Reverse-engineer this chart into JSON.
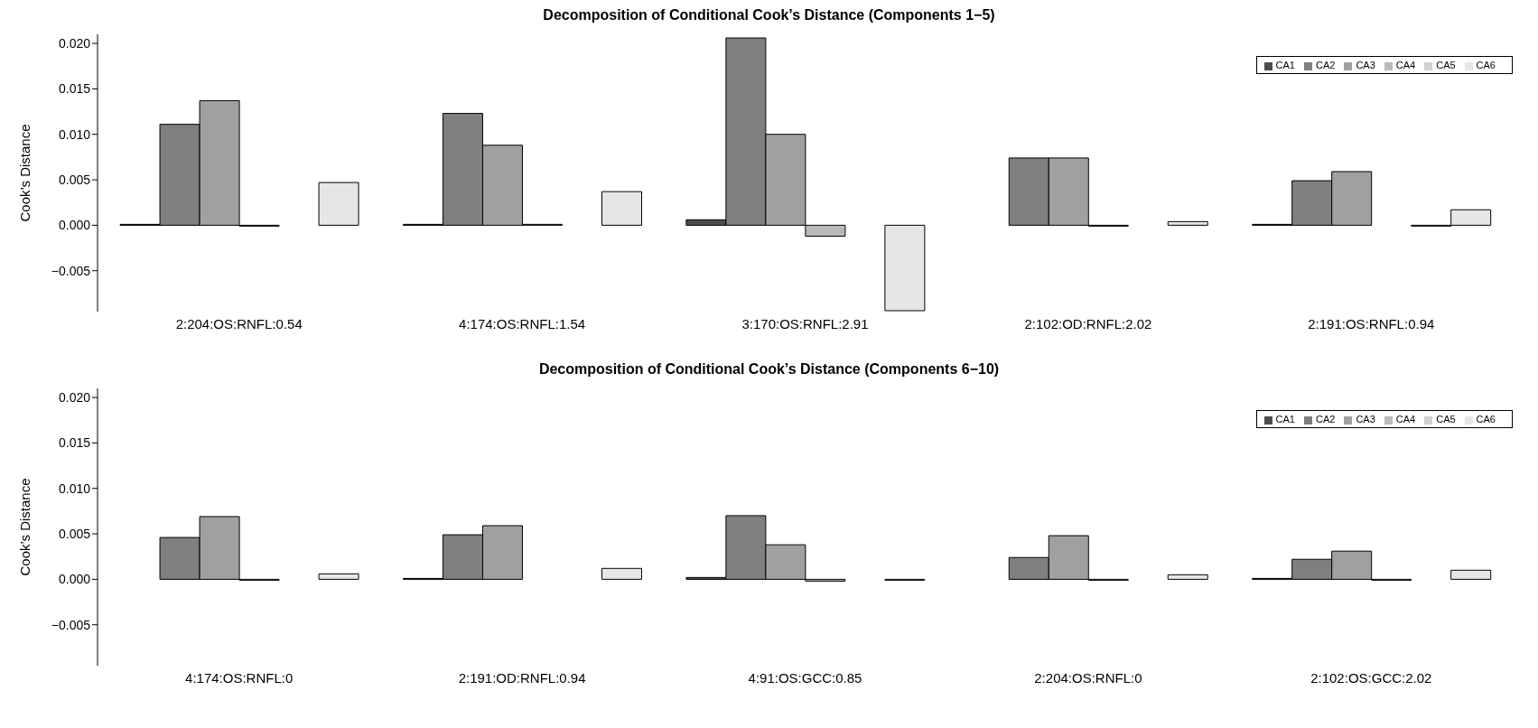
{
  "chart_data": [
    {
      "type": "bar",
      "title": "Decomposition of Conditional Cook’s Distance (Components 1−5)",
      "ylabel": "Cook’s Distance",
      "categories": [
        "2:204:OS:RNFL:0.54",
        "4:174:OS:RNFL:1.54",
        "3:170:OS:RNFL:2.91",
        "2:102:OD:RNFL:2.02",
        "2:191:OS:RNFL:0.94"
      ],
      "series": [
        {
          "name": "CA1",
          "color": "#4d4d4d",
          "values": [
            0.0001,
            0.0001,
            0.0006,
            0.0,
            0.0001
          ]
        },
        {
          "name": "CA2",
          "color": "#7f7f7f",
          "values": [
            0.0111,
            0.0123,
            0.0206,
            0.0074,
            0.0049
          ]
        },
        {
          "name": "CA3",
          "color": "#a0a0a0",
          "values": [
            0.0137,
            0.0088,
            0.01,
            0.0074,
            0.0059
          ]
        },
        {
          "name": "CA4",
          "color": "#bababa",
          "values": [
            -0.0001,
            0.0001,
            -0.0012,
            -0.0001,
            0.0
          ]
        },
        {
          "name": "CA5",
          "color": "#d1d1d1",
          "values": [
            0.0,
            0.0,
            0.0,
            0.0,
            -0.0001
          ]
        },
        {
          "name": "CA6",
          "color": "#e6e6e6",
          "values": [
            0.0047,
            0.0037,
            -0.0094,
            0.0004,
            0.0017
          ]
        }
      ],
      "ylim": [
        -0.0095,
        0.021
      ],
      "yticks": [
        {
          "value": -0.005,
          "label": "−0.005"
        },
        {
          "value": 0,
          "label": "0.000"
        },
        {
          "value": 0.005,
          "label": "0.005"
        },
        {
          "value": 0.01,
          "label": "0.010"
        },
        {
          "value": 0.015,
          "label": "0.015"
        },
        {
          "value": 0.02,
          "label": "0.020"
        }
      ],
      "grid": false,
      "legend": "top right"
    },
    {
      "type": "bar",
      "title": "Decomposition of Conditional Cook’s Distance (Components 6−10)",
      "ylabel": "Cook’s Distance",
      "categories": [
        "4:174:OS:RNFL:0",
        "2:191:OD:RNFL:0.94",
        "4:91:OS:GCC:0.85",
        "2:204:OS:RNFL:0",
        "2:102:OS:GCC:2.02"
      ],
      "series": [
        {
          "name": "CA1",
          "color": "#4d4d4d",
          "values": [
            0.0,
            0.0001,
            0.0002,
            0.0,
            0.0001
          ]
        },
        {
          "name": "CA2",
          "color": "#7f7f7f",
          "values": [
            0.0046,
            0.0049,
            0.007,
            0.0024,
            0.0022
          ]
        },
        {
          "name": "CA3",
          "color": "#a0a0a0",
          "values": [
            0.0069,
            0.0059,
            0.0038,
            0.0048,
            0.0031
          ]
        },
        {
          "name": "CA4",
          "color": "#bababa",
          "values": [
            -0.0001,
            0.0,
            -0.0002,
            -0.0001,
            -0.0001
          ]
        },
        {
          "name": "CA5",
          "color": "#d1d1d1",
          "values": [
            0.0,
            0.0,
            0.0,
            0.0,
            0.0
          ]
        },
        {
          "name": "CA6",
          "color": "#e6e6e6",
          "values": [
            0.0006,
            0.0012,
            -0.0001,
            0.0005,
            0.001
          ]
        }
      ],
      "ylim": [
        -0.0095,
        0.021
      ],
      "yticks": [
        {
          "value": -0.005,
          "label": "−0.005"
        },
        {
          "value": 0,
          "label": "0.000"
        },
        {
          "value": 0.005,
          "label": "0.005"
        },
        {
          "value": 0.01,
          "label": "0.010"
        },
        {
          "value": 0.015,
          "label": "0.015"
        },
        {
          "value": 0.02,
          "label": "0.020"
        }
      ],
      "grid": false,
      "legend": "top right"
    }
  ]
}
